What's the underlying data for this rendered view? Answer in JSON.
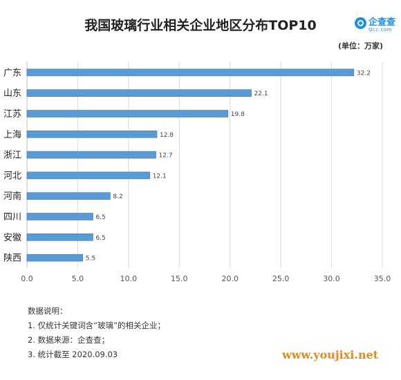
{
  "header": {
    "title": "我国玻璃行业相关企业地区分布TOP10",
    "unit": "(单位：万家)"
  },
  "logo": {
    "name": "企查查",
    "subtext": "Qcc.com"
  },
  "chart_data": {
    "type": "bar",
    "orientation": "horizontal",
    "categories": [
      "广东",
      "山东",
      "江苏",
      "上海",
      "浙江",
      "河北",
      "河南",
      "四川",
      "安徽",
      "陕西"
    ],
    "values": [
      32.2,
      22.1,
      19.8,
      12.8,
      12.7,
      12.1,
      8.2,
      6.5,
      6.5,
      5.5
    ],
    "value_labels": [
      "32.2",
      "22.1",
      "19.8",
      "12.8",
      "12.7",
      "12.1",
      "8.2",
      "6.5",
      "6.5",
      "5.5"
    ],
    "xlim": [
      0,
      35
    ],
    "xticks": [
      "0.0",
      "5.0",
      "10.0",
      "15.0",
      "20.0",
      "25.0",
      "30.0",
      "35.0"
    ],
    "grid": true,
    "bar_color": "#5b9bd5",
    "bar_edge_color": "#3a78b5"
  },
  "notes": {
    "heading": "数据说明：",
    "items": [
      "1. 仅统计关键词含“玻璃”的相关企业；",
      "2. 数据来源：企查查；",
      "3. 统计截至 2020.09.03"
    ]
  },
  "watermark": "www.youjixi.net"
}
